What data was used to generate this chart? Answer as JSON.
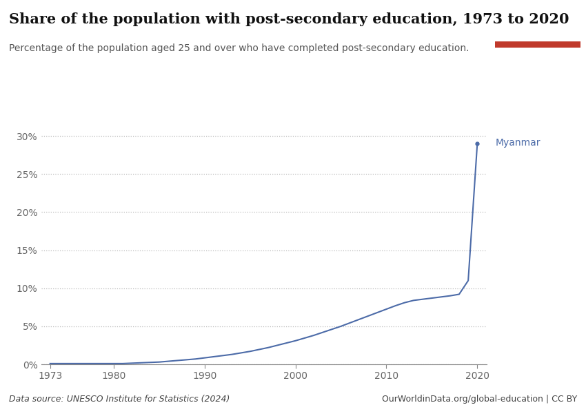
{
  "title": "Share of the population with post-secondary education, 1973 to 2020",
  "subtitle": "Percentage of the population aged 25 and over who have completed post-secondary education.",
  "data_source": "Data source: UNESCO Institute for Statistics (2024)",
  "url": "OurWorldinData.org/global-education | CC BY",
  "country_label": "Myanmar",
  "line_color": "#4c6ba8",
  "background_color": "#ffffff",
  "years": [
    1973,
    1974,
    1975,
    1976,
    1977,
    1978,
    1979,
    1980,
    1981,
    1982,
    1983,
    1984,
    1985,
    1986,
    1987,
    1988,
    1989,
    1990,
    1991,
    1992,
    1993,
    1994,
    1995,
    1996,
    1997,
    1998,
    1999,
    2000,
    2001,
    2002,
    2003,
    2004,
    2005,
    2006,
    2007,
    2008,
    2009,
    2010,
    2011,
    2012,
    2013,
    2014,
    2015,
    2016,
    2017,
    2018,
    2019,
    2020
  ],
  "values": [
    0.1,
    0.1,
    0.1,
    0.1,
    0.1,
    0.1,
    0.1,
    0.1,
    0.1,
    0.15,
    0.2,
    0.25,
    0.3,
    0.4,
    0.5,
    0.6,
    0.7,
    0.85,
    1.0,
    1.15,
    1.3,
    1.5,
    1.7,
    1.95,
    2.2,
    2.5,
    2.8,
    3.1,
    3.45,
    3.8,
    4.2,
    4.6,
    5.0,
    5.45,
    5.9,
    6.35,
    6.8,
    7.25,
    7.7,
    8.1,
    8.4,
    8.55,
    8.7,
    8.85,
    9.0,
    9.2,
    11.0,
    29.0
  ],
  "ylim": [
    0,
    0.31
  ],
  "yticks": [
    0.0,
    0.05,
    0.1,
    0.15,
    0.2,
    0.25,
    0.3
  ],
  "ytick_labels": [
    "0%",
    "5%",
    "10%",
    "15%",
    "20%",
    "25%",
    "30%"
  ],
  "xlim": [
    1972,
    2021
  ],
  "xticks": [
    1973,
    1980,
    1990,
    2000,
    2010,
    2020
  ],
  "logo_bg_color": "#1d3461",
  "logo_red_color": "#c0392b",
  "title_fontsize": 15,
  "subtitle_fontsize": 10,
  "label_fontsize": 10,
  "footer_fontsize": 9
}
